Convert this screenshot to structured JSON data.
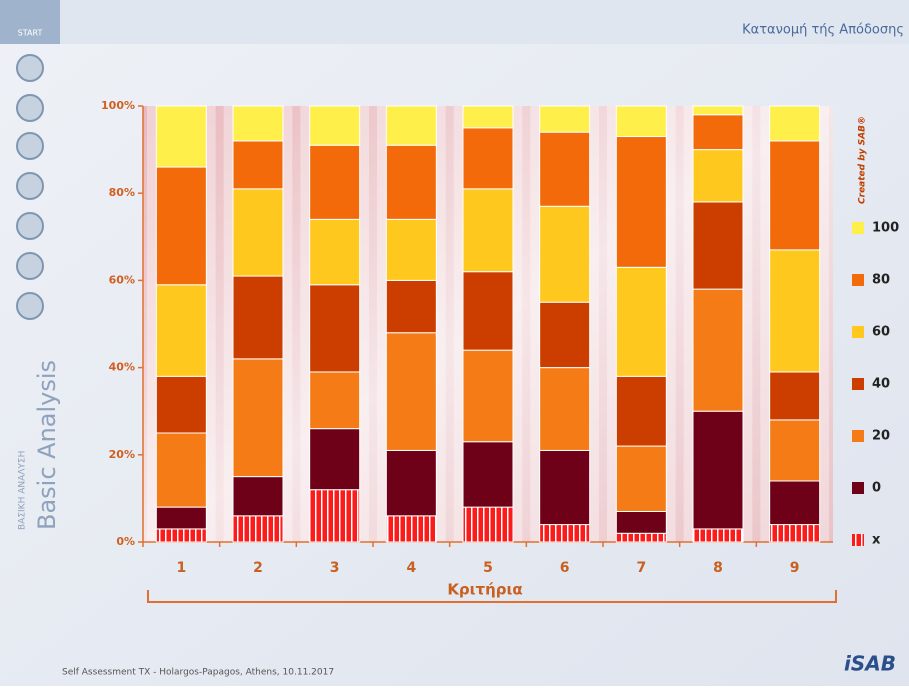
{
  "slide": {
    "start": "START",
    "side_title": "Basic Analysis",
    "side_subtitle": "ΒΑΣΙΚΗ ΑΝΑΛΥΣΗ",
    "footer": "Self Assessment TX - Holargos-Papagos, Athens, 10.11.2017",
    "logo": "iSAB"
  },
  "chart_data": {
    "type": "stacked_bar",
    "title": "Κατανομή τής Απόδοσης",
    "x_label": "Κριτήρια",
    "annotation": "Created by SAB®",
    "categories": [
      "1",
      "2",
      "3",
      "4",
      "5",
      "6",
      "7",
      "8",
      "9"
    ],
    "ylim": [
      0,
      100
    ],
    "yticks": [
      {
        "value": 0,
        "label": "0%"
      },
      {
        "value": 20,
        "label": "20%"
      },
      {
        "value": 40,
        "label": "40%"
      },
      {
        "value": 60,
        "label": "60%"
      },
      {
        "value": 80,
        "label": "80%"
      },
      {
        "value": 100,
        "label": "100%"
      }
    ],
    "series": [
      {
        "name": "x",
        "color": "#ff1a1a",
        "values": [
          3,
          6,
          12,
          6,
          8,
          4,
          2,
          3,
          4
        ]
      },
      {
        "name": "0",
        "color": "#6e0018",
        "values": [
          5,
          9,
          14,
          15,
          15,
          17,
          5,
          27,
          10
        ]
      },
      {
        "name": "20",
        "color": "#f47b16",
        "values": [
          17,
          27,
          13,
          27,
          21,
          19,
          15,
          28,
          14
        ]
      },
      {
        "name": "40",
        "color": "#cc3d00",
        "values": [
          13,
          19,
          20,
          12,
          18,
          15,
          16,
          20,
          11
        ]
      },
      {
        "name": "60",
        "color": "#ffc81e",
        "values": [
          21,
          20,
          15,
          14,
          19,
          22,
          25,
          12,
          28
        ]
      },
      {
        "name": "80",
        "color": "#f36a0a",
        "values": [
          27,
          11,
          17,
          17,
          14,
          17,
          30,
          8,
          25
        ]
      },
      {
        "name": "100",
        "color": "#ffef4a",
        "values": [
          14,
          8,
          9,
          9,
          5,
          6,
          7,
          2,
          8
        ]
      }
    ]
  }
}
